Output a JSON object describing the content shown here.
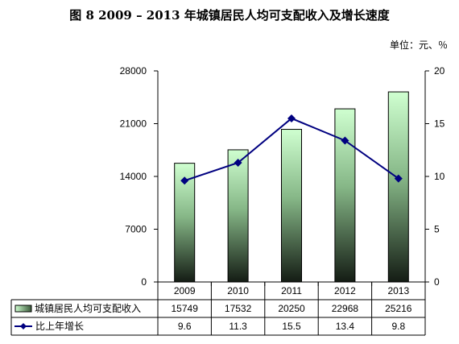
{
  "title": "图 8    2009 – 2013 年城镇居民人均可支配收入及增长速度",
  "unit": "单位：元、％",
  "chart_data": {
    "type": "bar+line",
    "categories": [
      "2009",
      "2010",
      "2011",
      "2012",
      "2013"
    ],
    "series": [
      {
        "name": "城镇居民人均可支配收入",
        "type": "bar",
        "axis": "left",
        "values": [
          15749,
          17532,
          20250,
          22968,
          25216
        ]
      },
      {
        "name": "比上年增长",
        "type": "line",
        "axis": "right",
        "values": [
          9.6,
          11.3,
          15.5,
          13.4,
          9.8
        ]
      }
    ],
    "y_left": {
      "ticks": [
        "0",
        "7000",
        "14000",
        "21000",
        "28000"
      ],
      "range": [
        0,
        28000
      ]
    },
    "y_right": {
      "ticks": [
        "0",
        "5",
        "10",
        "15",
        "20"
      ],
      "range": [
        0,
        20
      ]
    },
    "data_table": true,
    "colors": {
      "bar_top": "#cfffd0",
      "bar_bottom": "#141c14",
      "line": "#000080"
    }
  }
}
